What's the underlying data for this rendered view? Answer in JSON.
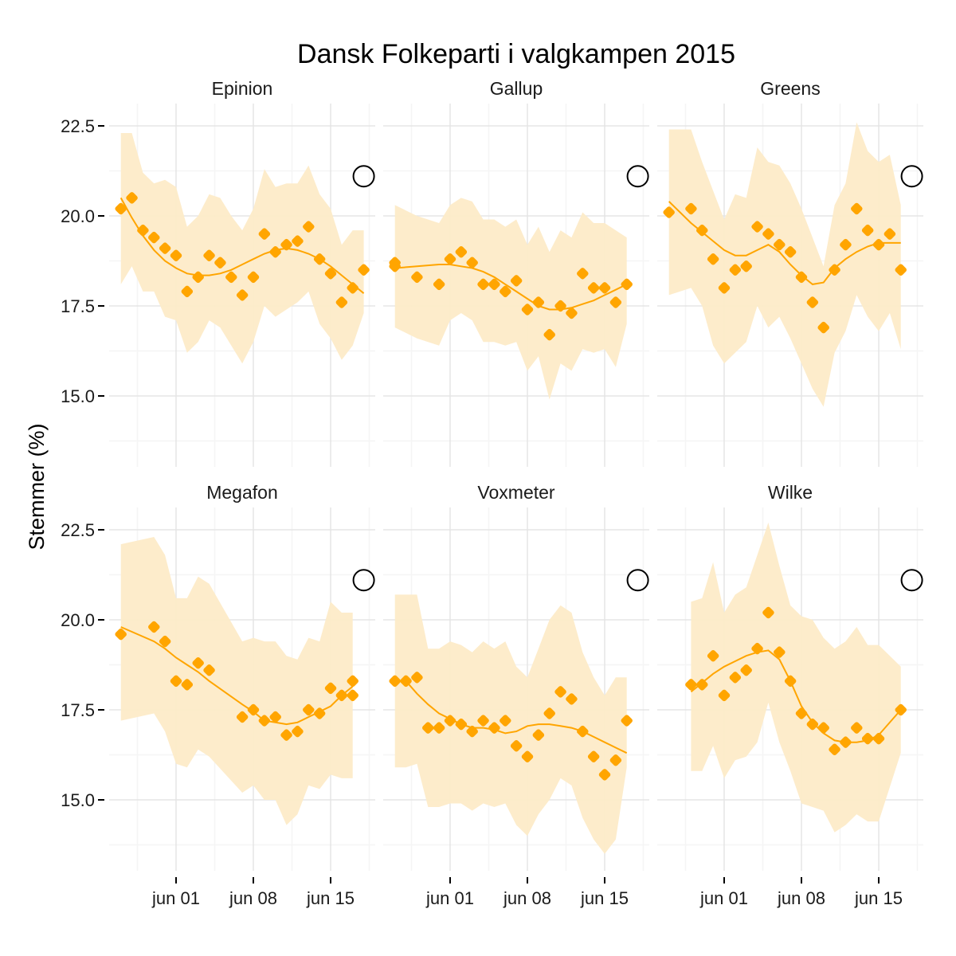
{
  "chart_data": {
    "type": "scatter",
    "title": "Dansk Folkeparti i valgkampen 2015",
    "xlabel": "",
    "ylabel": "Stemmer (%)",
    "ylim": [
      13.0,
      23.5
    ],
    "xlim": [
      "2015-05-25",
      "2015-06-19"
    ],
    "y_ticks": [
      "15.0",
      "17.5",
      "20.0",
      "22.5"
    ],
    "y_tick_values": [
      15.0,
      17.5,
      20.0,
      22.5
    ],
    "x_ticks": [
      "jun 01",
      "jun 08",
      "jun 15"
    ],
    "x_tick_days": [
      6,
      13,
      20
    ],
    "grid": true,
    "layout": "facet 2 rows x 3 columns",
    "colors": {
      "points": "#FFA500",
      "smooth": "#FFA500",
      "ribbon": "#FDEBC8",
      "grid_major": "#E5E5E5",
      "grid_minor": "#F5F5F5",
      "election_marker": "#000000"
    },
    "election_result": {
      "date": "2015-06-18",
      "value": 21.1,
      "marker": "open-circle"
    },
    "panels": [
      {
        "name": "Epinion",
        "dates": [
          "2015-05-27",
          "2015-05-28",
          "2015-05-29",
          "2015-05-30",
          "2015-05-31",
          "2015-06-01",
          "2015-06-02",
          "2015-06-03",
          "2015-06-04",
          "2015-06-05",
          "2015-06-06",
          "2015-06-07",
          "2015-06-08",
          "2015-06-09",
          "2015-06-10",
          "2015-06-11",
          "2015-06-12",
          "2015-06-13",
          "2015-06-14",
          "2015-06-15",
          "2015-06-16",
          "2015-06-17",
          "2015-06-18"
        ],
        "values": [
          20.2,
          20.5,
          19.6,
          19.4,
          19.1,
          18.9,
          17.9,
          18.3,
          18.9,
          18.7,
          18.3,
          17.8,
          18.3,
          19.5,
          19.0,
          19.2,
          19.3,
          19.7,
          18.8,
          18.4,
          17.6,
          18.0,
          18.5
        ],
        "ribbon_upper": [
          22.3,
          22.3,
          21.2,
          20.9,
          21.0,
          20.8,
          19.7,
          20.0,
          20.6,
          20.5,
          20.0,
          19.6,
          20.2,
          21.3,
          20.8,
          20.9,
          20.9,
          21.4,
          20.6,
          20.2,
          19.2,
          19.6,
          19.6
        ],
        "ribbon_lower": [
          18.1,
          18.6,
          17.9,
          17.9,
          17.2,
          17.1,
          16.2,
          16.5,
          17.1,
          16.9,
          16.4,
          15.9,
          16.5,
          17.5,
          17.2,
          17.4,
          17.6,
          17.9,
          17.0,
          16.6,
          16.0,
          16.4,
          17.3
        ],
        "smooth": [
          20.5,
          19.95,
          19.45,
          19.05,
          18.75,
          18.55,
          18.4,
          18.35,
          18.35,
          18.4,
          18.5,
          18.65,
          18.8,
          18.95,
          19.05,
          19.1,
          19.05,
          18.95,
          18.8,
          18.6,
          18.35,
          18.1,
          17.85
        ]
      },
      {
        "name": "Gallup",
        "dates": [
          "2015-05-27",
          "2015-05-27",
          "2015-05-29",
          "2015-05-31",
          "2015-06-01",
          "2015-06-02",
          "2015-06-03",
          "2015-06-04",
          "2015-06-05",
          "2015-06-06",
          "2015-06-07",
          "2015-06-08",
          "2015-06-09",
          "2015-06-10",
          "2015-06-11",
          "2015-06-12",
          "2015-06-13",
          "2015-06-14",
          "2015-06-15",
          "2015-06-16",
          "2015-06-17"
        ],
        "values": [
          18.7,
          18.6,
          18.3,
          18.1,
          18.8,
          19.0,
          18.7,
          18.1,
          18.1,
          17.9,
          18.2,
          17.4,
          17.6,
          16.7,
          17.5,
          17.3,
          18.4,
          18.0,
          18.0,
          17.6,
          18.1
        ],
        "ribbon_upper": [
          20.3,
          20.3,
          20.0,
          19.8,
          20.3,
          20.5,
          20.4,
          19.9,
          19.9,
          19.7,
          19.9,
          19.2,
          19.7,
          19.0,
          19.6,
          19.4,
          20.1,
          19.8,
          19.8,
          19.6,
          19.4
        ],
        "ribbon_lower": [
          16.9,
          16.9,
          16.6,
          16.4,
          17.1,
          17.3,
          17.1,
          16.5,
          16.5,
          16.4,
          16.5,
          15.7,
          16.1,
          14.9,
          15.9,
          15.7,
          16.3,
          16.2,
          16.3,
          15.8,
          17.0
        ],
        "smooth": [
          18.55,
          18.55,
          18.6,
          18.65,
          18.65,
          18.6,
          18.55,
          18.45,
          18.3,
          18.1,
          17.9,
          17.7,
          17.5,
          17.4,
          17.4,
          17.45,
          17.55,
          17.65,
          17.8,
          17.95,
          18.1
        ]
      },
      {
        "name": "Greens",
        "dates": [
          "2015-05-27",
          "2015-05-29",
          "2015-05-30",
          "2015-05-31",
          "2015-06-01",
          "2015-06-02",
          "2015-06-03",
          "2015-06-04",
          "2015-06-05",
          "2015-06-06",
          "2015-06-07",
          "2015-06-08",
          "2015-06-09",
          "2015-06-10",
          "2015-06-11",
          "2015-06-12",
          "2015-06-13",
          "2015-06-14",
          "2015-06-15",
          "2015-06-16",
          "2015-06-17"
        ],
        "values": [
          20.1,
          20.2,
          19.6,
          18.8,
          18.0,
          18.5,
          18.6,
          19.7,
          19.5,
          19.2,
          19.0,
          18.3,
          17.6,
          16.9,
          18.5,
          19.2,
          20.2,
          19.6,
          19.2,
          19.5,
          18.5
        ],
        "ribbon_upper": [
          22.4,
          22.4,
          21.5,
          20.7,
          19.9,
          20.6,
          20.5,
          21.9,
          21.5,
          21.4,
          20.9,
          20.2,
          19.4,
          18.6,
          20.3,
          20.9,
          22.6,
          21.8,
          21.5,
          21.7,
          20.3
        ],
        "ribbon_lower": [
          17.8,
          18.0,
          17.5,
          16.4,
          15.9,
          16.2,
          16.5,
          17.5,
          16.9,
          17.2,
          16.6,
          15.9,
          15.2,
          14.7,
          16.2,
          16.8,
          17.8,
          17.2,
          16.8,
          17.3,
          16.3
        ],
        "smooth": [
          20.4,
          19.8,
          19.55,
          19.3,
          19.05,
          18.9,
          18.9,
          19.05,
          19.2,
          19.0,
          18.65,
          18.35,
          18.1,
          18.15,
          18.55,
          18.8,
          19.0,
          19.15,
          19.25,
          19.25,
          19.25
        ]
      },
      {
        "name": "Megafon",
        "dates": [
          "2015-05-27",
          "2015-05-30",
          "2015-05-31",
          "2015-06-01",
          "2015-06-02",
          "2015-06-03",
          "2015-06-04",
          "2015-06-07",
          "2015-06-08",
          "2015-06-09",
          "2015-06-10",
          "2015-06-11",
          "2015-06-12",
          "2015-06-13",
          "2015-06-14",
          "2015-06-15",
          "2015-06-16",
          "2015-06-17",
          "2015-06-17"
        ],
        "values": [
          19.6,
          19.8,
          19.4,
          18.3,
          18.2,
          18.8,
          18.6,
          17.3,
          17.5,
          17.2,
          17.3,
          16.8,
          16.9,
          17.5,
          17.4,
          18.1,
          17.9,
          18.3,
          17.9
        ],
        "ribbon_upper": [
          22.1,
          22.3,
          21.8,
          20.6,
          20.6,
          21.2,
          21.0,
          19.4,
          19.5,
          19.4,
          19.4,
          19.0,
          18.9,
          19.5,
          19.4,
          20.5,
          20.2,
          20.2,
          20.2
        ],
        "ribbon_lower": [
          17.2,
          17.4,
          16.9,
          16.0,
          15.9,
          16.4,
          16.2,
          15.2,
          15.4,
          15.0,
          15.0,
          14.3,
          14.6,
          15.4,
          15.3,
          15.7,
          15.6,
          15.6,
          15.6
        ],
        "smooth": [
          19.8,
          19.4,
          19.2,
          18.95,
          18.75,
          18.55,
          18.3,
          17.65,
          17.45,
          17.2,
          17.15,
          17.1,
          17.15,
          17.3,
          17.45,
          17.6,
          17.9,
          18.15,
          18.15
        ]
      },
      {
        "name": "Voxmeter",
        "dates": [
          "2015-05-27",
          "2015-05-28",
          "2015-05-29",
          "2015-05-30",
          "2015-05-31",
          "2015-06-01",
          "2015-06-02",
          "2015-06-03",
          "2015-06-04",
          "2015-06-05",
          "2015-06-06",
          "2015-06-07",
          "2015-06-08",
          "2015-06-09",
          "2015-06-10",
          "2015-06-11",
          "2015-06-12",
          "2015-06-13",
          "2015-06-14",
          "2015-06-15",
          "2015-06-16",
          "2015-06-17"
        ],
        "values": [
          18.3,
          18.3,
          18.4,
          17.0,
          17.0,
          17.2,
          17.1,
          16.9,
          17.2,
          17.0,
          17.2,
          16.5,
          16.2,
          16.8,
          17.4,
          18.0,
          17.8,
          16.9,
          16.2,
          15.7,
          16.1,
          17.2
        ],
        "ribbon_upper": [
          20.7,
          20.7,
          20.7,
          19.2,
          19.2,
          19.4,
          19.3,
          19.1,
          19.4,
          19.2,
          19.4,
          18.7,
          18.4,
          19.2,
          20.0,
          20.4,
          20.2,
          19.1,
          18.4,
          17.9,
          18.4,
          18.4
        ],
        "ribbon_lower": [
          15.9,
          15.9,
          16.0,
          14.8,
          14.8,
          14.9,
          14.9,
          14.7,
          14.9,
          14.8,
          14.9,
          14.3,
          14.0,
          14.6,
          15.0,
          15.6,
          15.4,
          14.5,
          13.9,
          13.5,
          13.9,
          15.9
        ],
        "smooth": [
          18.3,
          18.3,
          17.95,
          17.65,
          17.4,
          17.25,
          17.1,
          17.0,
          17.0,
          16.95,
          16.85,
          16.9,
          17.05,
          17.1,
          17.1,
          17.05,
          17.0,
          16.9,
          16.75,
          16.6,
          16.45,
          16.3
        ]
      },
      {
        "name": "Wilke",
        "dates": [
          "2015-05-29",
          "2015-05-30",
          "2015-05-31",
          "2015-06-01",
          "2015-06-02",
          "2015-06-03",
          "2015-06-04",
          "2015-06-05",
          "2015-06-06",
          "2015-06-07",
          "2015-06-08",
          "2015-06-09",
          "2015-06-10",
          "2015-06-11",
          "2015-06-12",
          "2015-06-13",
          "2015-06-14",
          "2015-06-15",
          "2015-06-17"
        ],
        "values": [
          18.2,
          18.2,
          19.0,
          17.9,
          18.4,
          18.6,
          19.2,
          20.2,
          19.1,
          18.3,
          17.4,
          17.1,
          17.0,
          16.4,
          16.6,
          17.0,
          16.7,
          16.7,
          17.5
        ],
        "ribbon_upper": [
          20.5,
          20.6,
          21.6,
          20.2,
          20.7,
          20.9,
          21.8,
          22.7,
          21.5,
          20.4,
          20.1,
          20.0,
          19.5,
          19.2,
          19.4,
          19.8,
          19.3,
          19.3,
          18.7
        ],
        "ribbon_lower": [
          15.8,
          15.8,
          16.5,
          15.6,
          16.1,
          16.2,
          16.6,
          17.7,
          16.6,
          15.8,
          14.9,
          14.8,
          14.7,
          14.1,
          14.3,
          14.6,
          14.4,
          14.4,
          16.3
        ],
        "smooth": [
          18.0,
          18.25,
          18.5,
          18.7,
          18.85,
          19.0,
          19.1,
          19.15,
          18.9,
          18.3,
          17.6,
          17.15,
          16.85,
          16.65,
          16.6,
          16.6,
          16.65,
          16.8,
          17.5
        ]
      }
    ]
  }
}
